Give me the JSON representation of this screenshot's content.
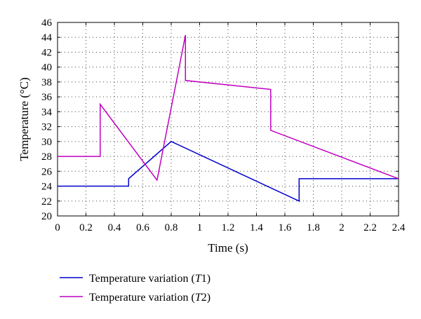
{
  "chart_data": {
    "type": "line",
    "xlabel": "Time (s)",
    "ylabel": "Temperature (°C)",
    "xlim": [
      0,
      2.4
    ],
    "ylim": [
      20,
      46
    ],
    "x_ticks": [
      0,
      0.2,
      0.4,
      0.6,
      0.8,
      1,
      1.2,
      1.4,
      1.6,
      1.8,
      2,
      2.2,
      2.4
    ],
    "x_tick_labels": [
      "0",
      "0.2",
      "0.4",
      "0.6",
      "0.8",
      "1",
      "1.2",
      "1.4",
      "1.6",
      "1.8",
      "2",
      "2.2",
      "2.4"
    ],
    "y_ticks": [
      20,
      22,
      24,
      26,
      28,
      30,
      32,
      34,
      36,
      38,
      40,
      42,
      44,
      46
    ],
    "y_tick_labels": [
      "20",
      "22",
      "24",
      "26",
      "28",
      "30",
      "32",
      "34",
      "36",
      "38",
      "40",
      "42",
      "44",
      "46"
    ],
    "grid": true,
    "grid_style": "dotted",
    "legend_position": "below",
    "series": [
      {
        "name": "Temperature variation (T1)",
        "legend_prefix": "Temperature variation (",
        "legend_var": "T",
        "legend_suffix": "1)",
        "color": "#0000cc",
        "points": [
          [
            0,
            24
          ],
          [
            0.5,
            24
          ],
          [
            0.5,
            25
          ],
          [
            0.8,
            30
          ],
          [
            1.7,
            22
          ],
          [
            1.7,
            25
          ],
          [
            2.4,
            25
          ]
        ]
      },
      {
        "name": "Temperature variation (T2)",
        "legend_prefix": "Temperature variation (",
        "legend_var": "T",
        "legend_suffix": "2)",
        "color": "#c000c0",
        "points": [
          [
            0,
            28
          ],
          [
            0.3,
            28
          ],
          [
            0.3,
            35
          ],
          [
            0.7,
            24.8
          ],
          [
            0.9,
            44.3
          ],
          [
            0.9,
            38.2
          ],
          [
            1.5,
            37
          ],
          [
            1.5,
            31.5
          ],
          [
            2.4,
            25
          ]
        ]
      }
    ]
  }
}
